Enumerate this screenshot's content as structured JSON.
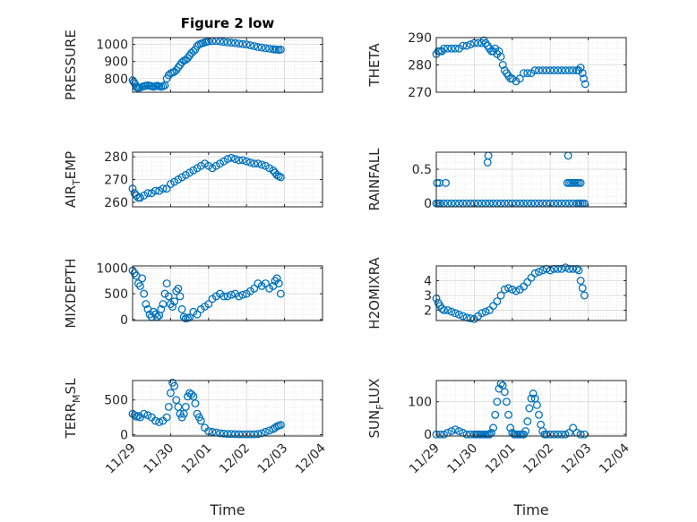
{
  "chart_data": [
    {
      "type": "scatter",
      "ylabel": "PRESSURE",
      "title": "Figure 2 low",
      "xlabel": "",
      "xlim": [
        0,
        5
      ],
      "ylim": [
        720,
        1040
      ],
      "yticks": [
        800,
        900,
        1000
      ],
      "x": [
        0,
        0.03,
        0.06,
        0.1,
        0.13,
        0.16,
        0.2,
        0.25,
        0.3,
        0.35,
        0.4,
        0.45,
        0.5,
        0.55,
        0.6,
        0.65,
        0.7,
        0.75,
        0.8,
        0.85,
        0.9,
        0.95,
        1.0,
        1.05,
        1.1,
        1.15,
        1.2,
        1.25,
        1.3,
        1.35,
        1.4,
        1.45,
        1.5,
        1.55,
        1.6,
        1.65,
        1.7,
        1.75,
        1.8,
        1.85,
        1.9,
        1.95,
        2.0,
        2.1,
        2.2,
        2.3,
        2.4,
        2.5,
        2.6,
        2.7,
        2.8,
        2.9,
        3.0,
        3.1,
        3.2,
        3.3,
        3.4,
        3.5,
        3.6,
        3.7,
        3.75,
        3.8,
        3.85,
        3.9
      ],
      "y": [
        790,
        780,
        770,
        750,
        745,
        745,
        748,
        752,
        755,
        758,
        760,
        758,
        755,
        752,
        755,
        758,
        755,
        752,
        755,
        760,
        800,
        820,
        830,
        835,
        840,
        850,
        865,
        880,
        895,
        905,
        910,
        920,
        935,
        950,
        960,
        970,
        990,
        1000,
        1005,
        1008,
        1012,
        1015,
        1018,
        1020,
        1020,
        1018,
        1015,
        1012,
        1010,
        1008,
        1005,
        1002,
        1000,
        995,
        990,
        985,
        982,
        978,
        975,
        972,
        970,
        970,
        968,
        970
      ]
    },
    {
      "type": "scatter",
      "ylabel": "THETA",
      "xlabel": "",
      "xlim": [
        0,
        5
      ],
      "ylim": [
        270,
        290
      ],
      "yticks": [
        270,
        280,
        290
      ],
      "x": [
        0,
        0.05,
        0.1,
        0.15,
        0.2,
        0.3,
        0.4,
        0.5,
        0.6,
        0.7,
        0.8,
        0.9,
        1.0,
        1.1,
        1.2,
        1.25,
        1.3,
        1.35,
        1.4,
        1.45,
        1.5,
        1.55,
        1.6,
        1.65,
        1.7,
        1.75,
        1.8,
        1.85,
        1.9,
        1.95,
        2.0,
        2.1,
        2.2,
        2.3,
        2.4,
        2.5,
        2.6,
        2.7,
        2.8,
        2.9,
        3.0,
        3.1,
        3.2,
        3.3,
        3.4,
        3.5,
        3.6,
        3.7,
        3.75,
        3.8,
        3.85,
        3.88,
        3.92
      ],
      "y": [
        284,
        285,
        285,
        285,
        286,
        286,
        286,
        286,
        286,
        287,
        287,
        287.5,
        288,
        288,
        288,
        289,
        288,
        287,
        286,
        285,
        285,
        286,
        284,
        285,
        283,
        280,
        278,
        277,
        276,
        275,
        275,
        274,
        275,
        277,
        277,
        277,
        278,
        278,
        278,
        278,
        278,
        278,
        278,
        278,
        278,
        278,
        278,
        278,
        278,
        279,
        277,
        275,
        273
      ]
    },
    {
      "type": "scatter",
      "ylabel": "AIR_TEMP",
      "xlabel": "",
      "xlim": [
        0,
        5
      ],
      "ylim": [
        258,
        282
      ],
      "yticks": [
        260,
        270,
        280
      ],
      "x": [
        0,
        0.05,
        0.1,
        0.15,
        0.2,
        0.3,
        0.4,
        0.5,
        0.6,
        0.7,
        0.8,
        0.9,
        1.0,
        1.1,
        1.2,
        1.3,
        1.4,
        1.5,
        1.6,
        1.7,
        1.8,
        1.9,
        2.0,
        2.1,
        2.2,
        2.3,
        2.4,
        2.5,
        2.6,
        2.7,
        2.8,
        2.9,
        3.0,
        3.1,
        3.2,
        3.3,
        3.4,
        3.5,
        3.6,
        3.7,
        3.75,
        3.8,
        3.85,
        3.9
      ],
      "y": [
        266,
        264,
        263,
        262,
        262,
        263,
        264,
        264,
        265,
        265,
        266,
        266,
        268,
        269,
        270,
        271,
        272,
        273,
        274,
        275,
        276,
        277,
        276,
        275,
        276,
        277,
        278,
        279,
        279.5,
        279,
        278.5,
        278.5,
        278,
        277.5,
        277,
        277,
        276.5,
        276,
        275,
        274,
        273,
        272,
        271.5,
        271
      ]
    },
    {
      "type": "scatter",
      "ylabel": "RAINFALL",
      "xlabel": "",
      "xlim": [
        0,
        5
      ],
      "ylim": [
        -0.05,
        0.75
      ],
      "yticks": [
        0,
        0.5
      ],
      "x": [
        0,
        0.05,
        0.1,
        0.2,
        0.3,
        0.4,
        0.5,
        0.6,
        0.7,
        0.8,
        0.9,
        1.0,
        1.1,
        1.2,
        1.3,
        1.4,
        1.5,
        1.6,
        1.7,
        1.8,
        1.9,
        2.0,
        2.1,
        2.2,
        2.3,
        2.4,
        2.5,
        2.6,
        2.7,
        2.8,
        2.9,
        3.0,
        3.1,
        3.2,
        3.3,
        3.4,
        3.5,
        3.6,
        3.7,
        3.75,
        3.8,
        3.85,
        3.9,
        0.02,
        0.08,
        0.25,
        1.35,
        1.37,
        3.45,
        3.5,
        3.55,
        3.6,
        3.65,
        3.7,
        3.75,
        3.8,
        3.47
      ],
      "y": [
        0,
        0,
        0,
        0,
        0,
        0,
        0,
        0,
        0,
        0,
        0,
        0,
        0,
        0,
        0,
        0,
        0,
        0,
        0,
        0,
        0,
        0,
        0,
        0,
        0,
        0,
        0,
        0,
        0,
        0,
        0,
        0,
        0,
        0,
        0,
        0,
        0,
        0,
        0,
        0,
        0,
        0,
        0,
        0.3,
        0.3,
        0.3,
        0.6,
        0.7,
        0.3,
        0.3,
        0.3,
        0.3,
        0.3,
        0.3,
        0.3,
        0.3,
        0.7
      ]
    },
    {
      "type": "scatter",
      "ylabel": "MIXDEPTH",
      "xlabel": "",
      "xlim": [
        0,
        5
      ],
      "ylim": [
        -20,
        1040
      ],
      "yticks": [
        0,
        500,
        1000
      ],
      "x": [
        0,
        0.05,
        0.1,
        0.15,
        0.2,
        0.25,
        0.3,
        0.35,
        0.4,
        0.45,
        0.5,
        0.55,
        0.6,
        0.65,
        0.7,
        0.75,
        0.8,
        0.85,
        0.9,
        0.95,
        1.0,
        1.05,
        1.1,
        1.15,
        1.2,
        1.25,
        1.3,
        1.35,
        1.4,
        1.45,
        1.5,
        1.6,
        1.7,
        1.8,
        1.9,
        2.0,
        2.1,
        2.2,
        2.3,
        2.4,
        2.5,
        2.6,
        2.7,
        2.8,
        2.9,
        3.0,
        3.1,
        3.2,
        3.3,
        3.4,
        3.5,
        3.6,
        3.7,
        3.75,
        3.8,
        3.85,
        3.9
      ],
      "y": [
        950,
        900,
        850,
        700,
        650,
        800,
        500,
        300,
        200,
        100,
        50,
        150,
        100,
        50,
        80,
        200,
        300,
        500,
        700,
        450,
        300,
        250,
        350,
        550,
        600,
        450,
        200,
        50,
        20,
        30,
        40,
        150,
        100,
        200,
        250,
        300,
        400,
        450,
        500,
        450,
        450,
        480,
        500,
        450,
        480,
        500,
        550,
        600,
        700,
        650,
        700,
        600,
        650,
        750,
        800,
        700,
        500
      ]
    },
    {
      "type": "scatter",
      "ylabel": "H2OMIXRA",
      "xlabel": "",
      "xlim": [
        0,
        5
      ],
      "ylim": [
        1.3,
        5.0
      ],
      "yticks": [
        2,
        3,
        4
      ],
      "x": [
        0,
        0.05,
        0.1,
        0.15,
        0.2,
        0.3,
        0.4,
        0.5,
        0.6,
        0.7,
        0.8,
        0.9,
        1.0,
        1.1,
        1.2,
        1.3,
        1.4,
        1.5,
        1.6,
        1.7,
        1.8,
        1.9,
        2.0,
        2.1,
        2.2,
        2.3,
        2.4,
        2.5,
        2.6,
        2.7,
        2.8,
        2.9,
        3.0,
        3.1,
        3.2,
        3.3,
        3.4,
        3.5,
        3.6,
        3.7,
        3.75,
        3.8,
        3.85,
        3.9
      ],
      "y": [
        2.8,
        2.5,
        2.3,
        2.1,
        2.0,
        2.0,
        1.9,
        1.8,
        1.7,
        1.6,
        1.5,
        1.45,
        1.4,
        1.6,
        1.8,
        1.9,
        2.0,
        2.3,
        2.6,
        3.0,
        3.4,
        3.5,
        3.4,
        3.3,
        3.4,
        3.6,
        3.9,
        4.2,
        4.5,
        4.6,
        4.7,
        4.8,
        4.7,
        4.8,
        4.8,
        4.8,
        4.9,
        4.8,
        4.8,
        4.8,
        4.7,
        4.0,
        3.5,
        3.0
      ]
    },
    {
      "type": "scatter",
      "ylabel": "TERR_MSL",
      "xlabel": "Time",
      "xlim": [
        0,
        5
      ],
      "ylim": [
        -20,
        780
      ],
      "xticks": [
        "11/29",
        "11/30",
        "12/01",
        "12/02",
        "12/03",
        "12/04"
      ],
      "yticks": [
        0,
        500
      ],
      "x": [
        0,
        0.05,
        0.1,
        0.15,
        0.2,
        0.3,
        0.4,
        0.5,
        0.6,
        0.7,
        0.8,
        0.9,
        0.95,
        1.0,
        1.05,
        1.1,
        1.15,
        1.2,
        1.25,
        1.3,
        1.35,
        1.4,
        1.45,
        1.5,
        1.55,
        1.6,
        1.65,
        1.7,
        1.75,
        1.8,
        1.9,
        2.0,
        2.1,
        2.2,
        2.3,
        2.4,
        2.5,
        2.6,
        2.7,
        2.8,
        2.9,
        3.0,
        3.1,
        3.2,
        3.3,
        3.4,
        3.5,
        3.6,
        3.7,
        3.75,
        3.8,
        3.85,
        3.9
      ],
      "y": [
        300,
        280,
        260,
        270,
        250,
        300,
        280,
        250,
        200,
        180,
        200,
        250,
        400,
        600,
        750,
        700,
        500,
        400,
        300,
        250,
        300,
        400,
        550,
        600,
        580,
        550,
        450,
        300,
        250,
        200,
        100,
        50,
        40,
        30,
        20,
        15,
        10,
        10,
        8,
        5,
        5,
        5,
        5,
        5,
        10,
        20,
        40,
        60,
        80,
        100,
        120,
        130,
        140
      ]
    },
    {
      "type": "scatter",
      "ylabel": "SUN_FLUX",
      "xlabel": "Time",
      "xlim": [
        0,
        5
      ],
      "ylim": [
        -5,
        165
      ],
      "xticks": [
        "11/29",
        "11/30",
        "12/01",
        "12/02",
        "12/03",
        "12/04"
      ],
      "yticks": [
        0,
        100
      ],
      "x": [
        0,
        0.1,
        0.2,
        0.3,
        0.4,
        0.5,
        0.6,
        0.7,
        0.8,
        0.9,
        1.0,
        1.05,
        1.1,
        1.15,
        1.2,
        1.25,
        1.3,
        1.35,
        1.4,
        1.45,
        1.5,
        1.55,
        1.6,
        1.65,
        1.7,
        1.75,
        1.8,
        1.85,
        1.9,
        1.95,
        2.0,
        2.05,
        2.1,
        2.15,
        2.2,
        2.25,
        2.3,
        2.35,
        2.4,
        2.45,
        2.5,
        2.55,
        2.6,
        2.65,
        2.7,
        2.75,
        2.8,
        2.85,
        2.9,
        3.0,
        3.1,
        3.2,
        3.3,
        3.4,
        3.5,
        3.6,
        3.7,
        3.8,
        3.9
      ],
      "y": [
        0,
        0,
        0,
        5,
        10,
        15,
        10,
        5,
        0,
        0,
        0,
        0,
        0,
        0,
        0,
        0,
        0,
        0,
        0,
        5,
        20,
        60,
        100,
        140,
        155,
        150,
        130,
        100,
        60,
        20,
        5,
        0,
        0,
        0,
        0,
        0,
        0,
        10,
        40,
        80,
        110,
        125,
        110,
        90,
        60,
        30,
        10,
        0,
        0,
        0,
        0,
        0,
        0,
        0,
        5,
        20,
        5,
        0,
        0
      ]
    }
  ]
}
